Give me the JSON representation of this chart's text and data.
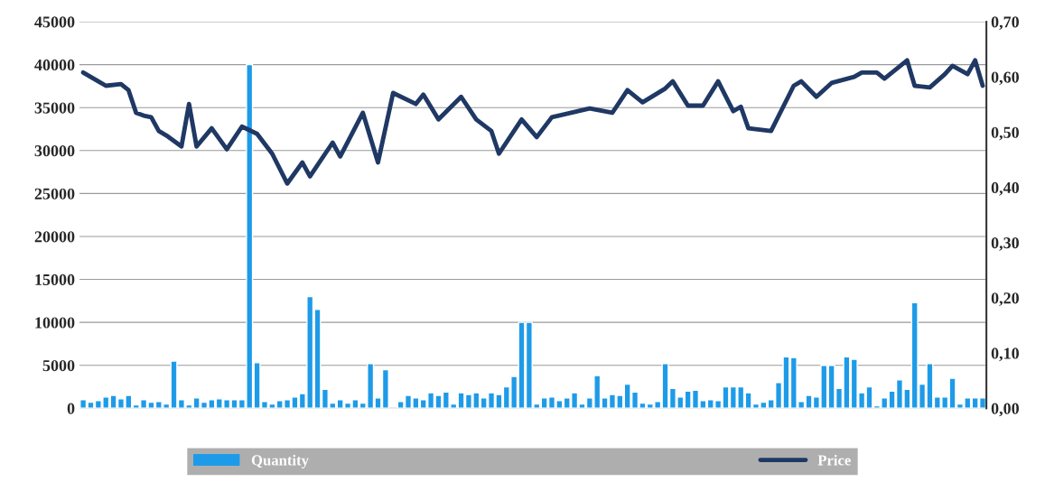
{
  "chart_data": {
    "type": "bar",
    "categories": [
      null,
      null,
      null,
      null,
      null,
      null,
      null,
      null,
      null,
      null,
      null,
      null,
      null,
      null,
      null,
      null,
      null,
      null,
      null,
      null,
      null,
      null,
      null,
      null,
      null,
      null,
      null,
      null,
      null,
      null,
      null,
      null,
      null,
      null,
      null,
      null,
      null,
      null,
      null,
      null,
      null,
      null,
      null,
      null,
      null,
      null,
      null,
      null,
      null,
      null,
      null,
      null,
      null,
      null,
      null,
      null,
      null,
      null,
      null,
      null,
      null,
      null,
      null,
      null,
      null,
      null,
      null,
      null,
      null,
      null,
      null,
      null,
      null,
      null,
      null,
      null,
      null,
      null,
      null,
      null,
      null,
      null,
      null,
      null,
      null,
      null,
      null,
      null,
      null,
      null,
      null,
      null,
      null,
      null,
      null,
      null,
      null,
      null,
      null,
      null,
      null,
      null,
      null,
      null,
      null,
      null,
      null,
      null,
      null,
      null,
      null,
      null,
      null,
      null,
      null,
      null,
      null,
      null,
      null,
      null
    ],
    "series": [
      {
        "name": "Quantity",
        "color": "#1e9be8",
        "values": [
          1000,
          700,
          900,
          1300,
          1500,
          1100,
          1500,
          400,
          1000,
          700,
          800,
          500,
          5500,
          1000,
          400,
          1200,
          700,
          1000,
          1100,
          1000,
          1000,
          1000,
          40000,
          5300,
          800,
          500,
          900,
          1000,
          1300,
          1700,
          13000,
          11500,
          2200,
          600,
          1000,
          600,
          1000,
          600,
          5200,
          1200,
          4500,
          null,
          800,
          1500,
          1200,
          1000,
          1800,
          1500,
          1900,
          500,
          1800,
          1600,
          1800,
          1200,
          1800,
          1600,
          2500,
          3700,
          10000,
          10000,
          500,
          1200,
          1300,
          900,
          1200,
          1800,
          500,
          1200,
          3800,
          1200,
          1600,
          1500,
          2800,
          1900,
          600,
          500,
          800,
          5200,
          2300,
          1300,
          2000,
          2100,
          900,
          1000,
          900,
          2500,
          2500,
          2500,
          1800,
          500,
          700,
          1000,
          3000,
          6000,
          5900,
          800,
          1500,
          1300,
          5000,
          5000,
          2300,
          6000,
          5700,
          1800,
          2500,
          300,
          1200,
          2000,
          3300,
          2200,
          12300,
          2800,
          5200,
          1300,
          1300,
          3500,
          500,
          1200,
          1200,
          1200
        ]
      },
      {
        "name": "Price",
        "type": "line",
        "axis": "y2",
        "color": "#1f3864",
        "values": [
          0.608,
          null,
          0.592,
          0.584,
          null,
          0.587,
          0.576,
          0.535,
          0.53,
          0.527,
          0.502,
          0.494,
          null,
          0.474,
          0.551,
          0.474,
          null,
          0.507,
          null,
          0.469,
          null,
          0.51,
          null,
          0.497,
          null,
          0.461,
          null,
          0.407,
          null,
          0.445,
          0.42,
          null,
          null,
          0.481,
          0.456,
          null,
          null,
          0.535,
          null,
          0.445,
          null,
          0.571,
          null,
          null,
          0.551,
          0.568,
          null,
          0.523,
          null,
          null,
          0.564,
          null,
          0.523,
          null,
          0.502,
          0.461,
          null,
          null,
          0.523,
          null,
          0.491,
          null,
          0.527,
          null,
          null,
          null,
          null,
          0.543,
          null,
          null,
          0.535,
          null,
          0.576,
          null,
          0.554,
          null,
          null,
          0.579,
          0.592,
          null,
          0.548,
          null,
          0.548,
          null,
          0.592,
          null,
          0.538,
          0.546,
          0.507,
          null,
          null,
          0.502,
          null,
          null,
          0.584,
          0.592,
          null,
          0.564,
          null,
          0.589,
          null,
          null,
          0.6,
          0.608,
          null,
          0.608,
          0.597,
          null,
          null,
          0.63,
          0.584,
          null,
          0.581,
          null,
          0.605,
          0.62,
          null,
          0.605,
          0.63,
          0.584
        ]
      }
    ],
    "ylim": [
      0,
      45000
    ],
    "yticks": [
      0,
      5000,
      10000,
      15000,
      20000,
      25000,
      30000,
      35000,
      40000,
      45000
    ],
    "y2lim": [
      0,
      0.7
    ],
    "y2ticks": [
      {
        "value": 0,
        "label": "0,00"
      },
      {
        "value": 0.1,
        "label": "0,10"
      },
      {
        "value": 0.2,
        "label": "0,20"
      },
      {
        "value": 0.3,
        "label": "0,30"
      },
      {
        "value": 0.4,
        "label": "0,40"
      },
      {
        "value": 0.5,
        "label": "0,50"
      },
      {
        "value": 0.6,
        "label": "0,60"
      },
      {
        "value": 0.7,
        "label": "0,70"
      }
    ],
    "grid": "y",
    "legend": "bottom"
  }
}
